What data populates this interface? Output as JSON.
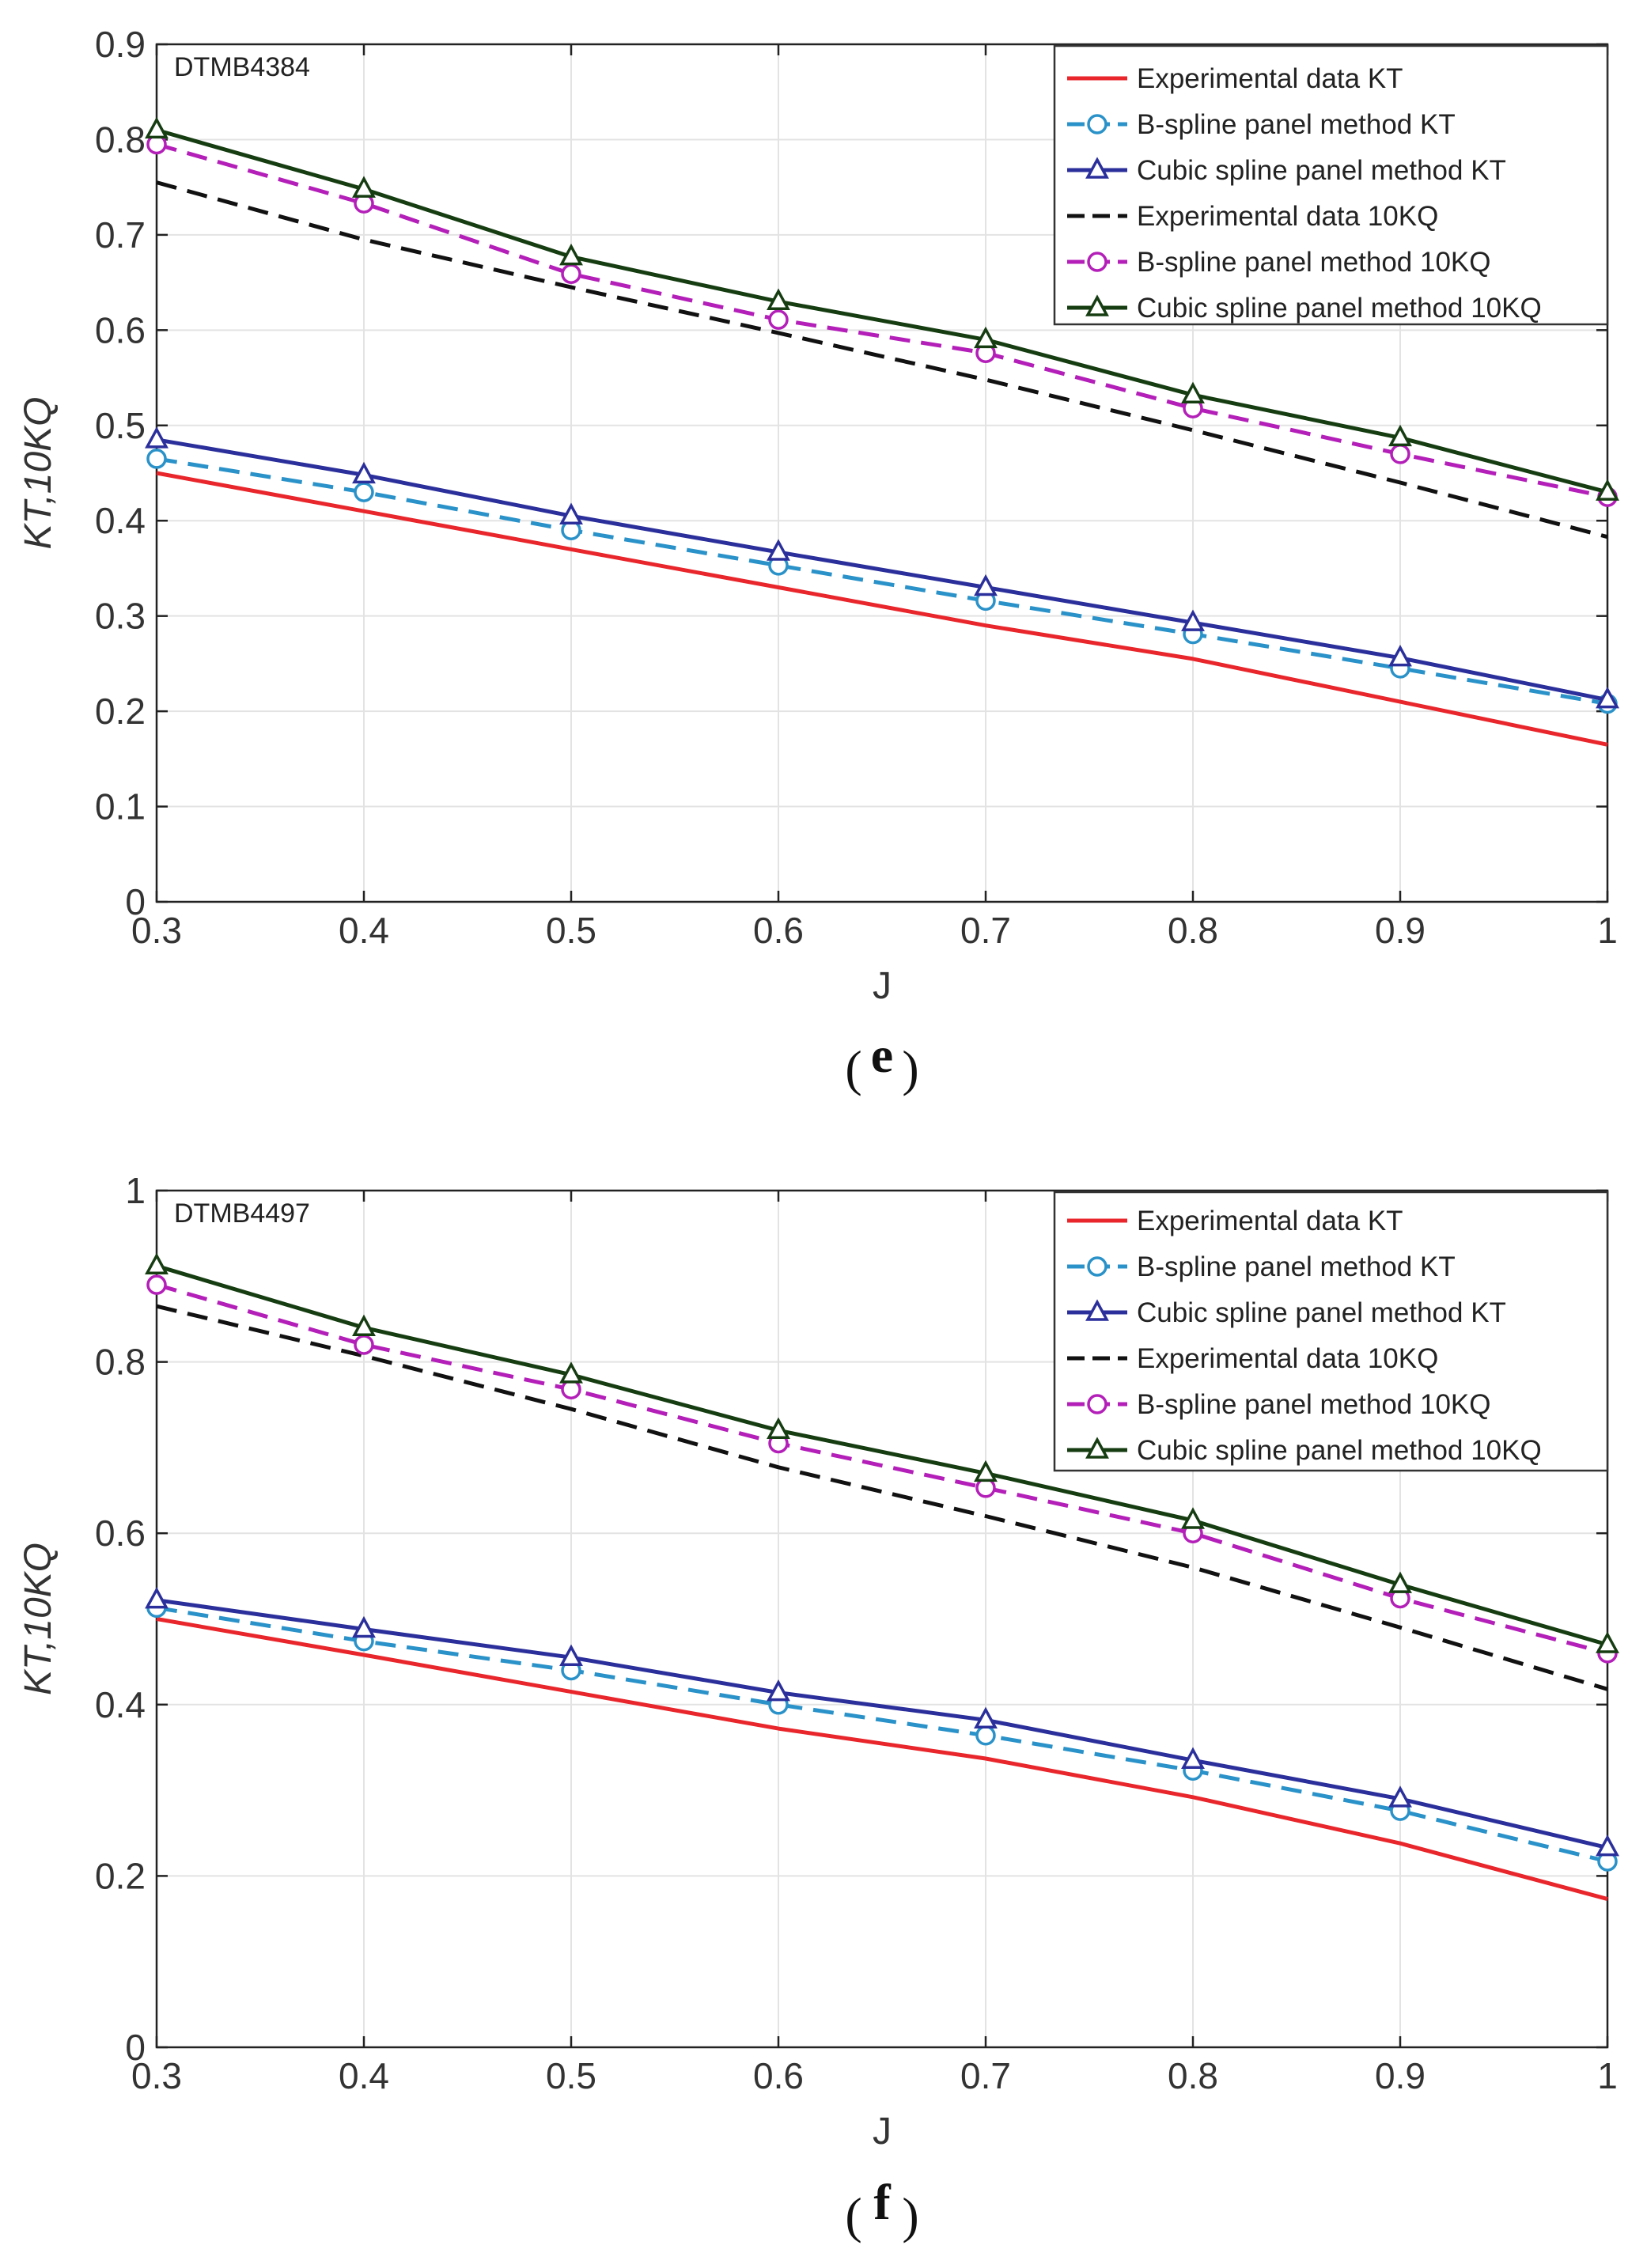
{
  "chart_data": [
    {
      "type": "line",
      "panel_label": "e",
      "annotation": "DTMB4384",
      "xlabel": "J",
      "ylabel": "KT,10KQ",
      "xlim": [
        0.3,
        1
      ],
      "ylim": [
        0,
        0.9
      ],
      "grid": true,
      "legend_position": "top-right",
      "x": [
        0.3,
        0.4,
        0.5,
        0.6,
        0.7,
        0.8,
        0.9,
        1.0
      ],
      "x_ticks": [
        "0.3",
        "0.4",
        "0.5",
        "0.6",
        "0.7",
        "0.8",
        "0.9",
        "1"
      ],
      "y_ticks": [
        {
          "value": 0,
          "label": "0"
        },
        {
          "value": 0.1,
          "label": "0.1"
        },
        {
          "value": 0.2,
          "label": "0.2"
        },
        {
          "value": 0.3,
          "label": "0.3"
        },
        {
          "value": 0.4,
          "label": "0.4"
        },
        {
          "value": 0.5,
          "label": "0.5"
        },
        {
          "value": 0.6,
          "label": "0.6"
        },
        {
          "value": 0.7,
          "label": "0.7"
        },
        {
          "value": 0.8,
          "label": "0.8"
        },
        {
          "value": 0.9,
          "label": "0.9"
        }
      ],
      "series": [
        {
          "name": "Experimental data KT",
          "color": "#e8262b",
          "dash": "solid",
          "marker": "none",
          "values": [
            0.45,
            0.41,
            0.37,
            0.33,
            0.29,
            0.255,
            0.21,
            0.165
          ]
        },
        {
          "name": "B-spline panel method KT",
          "color": "#2a92c9",
          "dash": "dashed",
          "marker": "circle",
          "values": [
            0.465,
            0.43,
            0.39,
            0.353,
            0.316,
            0.281,
            0.245,
            0.208
          ]
        },
        {
          "name": "Cubic spline panel method KT",
          "color": "#2b2f9b",
          "dash": "solid",
          "marker": "triangle",
          "values": [
            0.485,
            0.448,
            0.405,
            0.367,
            0.33,
            0.293,
            0.256,
            0.212
          ]
        },
        {
          "name": "Experimental data 10KQ",
          "color": "#111111",
          "dash": "dashed",
          "marker": "none",
          "values": [
            0.755,
            0.695,
            0.645,
            0.597,
            0.548,
            0.495,
            0.44,
            0.383
          ]
        },
        {
          "name": "B-spline panel method 10KQ",
          "color": "#b31fb8",
          "dash": "dashed",
          "marker": "circle",
          "values": [
            0.795,
            0.733,
            0.659,
            0.611,
            0.576,
            0.518,
            0.47,
            0.425
          ]
        },
        {
          "name": "Cubic spline panel method 10KQ",
          "color": "#163d12",
          "dash": "solid",
          "marker": "triangle",
          "values": [
            0.81,
            0.748,
            0.677,
            0.63,
            0.59,
            0.532,
            0.487,
            0.43
          ]
        }
      ]
    },
    {
      "type": "line",
      "panel_label": "f",
      "annotation": "DTMB4497",
      "xlabel": "J",
      "ylabel": "KT,10KQ",
      "xlim": [
        0.3,
        1
      ],
      "ylim": [
        0,
        1
      ],
      "grid": true,
      "legend_position": "top-right",
      "x": [
        0.3,
        0.4,
        0.5,
        0.6,
        0.7,
        0.8,
        0.9,
        1.0
      ],
      "x_ticks": [
        "0.3",
        "0.4",
        "0.5",
        "0.6",
        "0.7",
        "0.8",
        "0.9",
        "1"
      ],
      "y_ticks": [
        {
          "value": 0,
          "label": "0"
        },
        {
          "value": 0.2,
          "label": "0.2"
        },
        {
          "value": 0.4,
          "label": "0.4"
        },
        {
          "value": 0.6,
          "label": "0.6"
        },
        {
          "value": 0.8,
          "label": "0.8"
        },
        {
          "value": 1,
          "label": "1"
        }
      ],
      "series": [
        {
          "name": "Experimental data KT",
          "color": "#e8262b",
          "dash": "solid",
          "marker": "none",
          "values": [
            0.5,
            0.458,
            0.415,
            0.372,
            0.337,
            0.292,
            0.238,
            0.173
          ]
        },
        {
          "name": "B-spline panel method KT",
          "color": "#2a92c9",
          "dash": "dashed",
          "marker": "circle",
          "values": [
            0.513,
            0.474,
            0.44,
            0.4,
            0.364,
            0.323,
            0.276,
            0.217
          ]
        },
        {
          "name": "Cubic spline panel method KT",
          "color": "#2b2f9b",
          "dash": "solid",
          "marker": "triangle",
          "values": [
            0.522,
            0.488,
            0.455,
            0.414,
            0.382,
            0.335,
            0.29,
            0.233
          ]
        },
        {
          "name": "Experimental data 10KQ",
          "color": "#111111",
          "dash": "dashed",
          "marker": "none",
          "values": [
            0.865,
            0.807,
            0.745,
            0.677,
            0.62,
            0.56,
            0.49,
            0.418
          ]
        },
        {
          "name": "B-spline panel method 10KQ",
          "color": "#b31fb8",
          "dash": "dashed",
          "marker": "circle",
          "values": [
            0.89,
            0.82,
            0.768,
            0.705,
            0.653,
            0.6,
            0.524,
            0.46
          ]
        },
        {
          "name": "Cubic spline panel method 10KQ",
          "color": "#163d12",
          "dash": "solid",
          "marker": "triangle",
          "values": [
            0.912,
            0.84,
            0.785,
            0.72,
            0.67,
            0.615,
            0.54,
            0.47
          ]
        }
      ]
    }
  ]
}
